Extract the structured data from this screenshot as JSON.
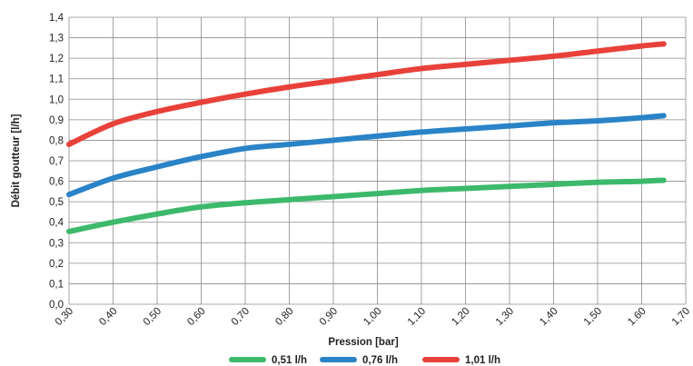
{
  "chart_data": {
    "type": "line",
    "xlabel": "Pression [bar]",
    "ylabel": "Débit goutteur [l/h]",
    "xlim": [
      0.3,
      1.7
    ],
    "ylim": [
      0.0,
      1.4
    ],
    "grid": true,
    "legend_position": "bottom",
    "x_ticks": [
      "0,30",
      "0,40",
      "0,50",
      "0,60",
      "0,70",
      "0,80",
      "0,90",
      "1,00",
      "1,10",
      "1,20",
      "1,30",
      "1,40",
      "1,50",
      "1.60",
      "1,70"
    ],
    "y_ticks": [
      "0,0",
      "0,1",
      "0,2",
      "0,3",
      "0,4",
      "0,5",
      "0,6",
      "0,7",
      "0,8",
      "0,9",
      "1,0",
      "1,1",
      "1,2",
      "1,3",
      "1,4"
    ],
    "series": [
      {
        "name": "0,51 l/h",
        "color": "#3cb96b",
        "x": [
          0.3,
          0.4,
          0.5,
          0.6,
          0.7,
          0.8,
          0.9,
          1.0,
          1.1,
          1.2,
          1.3,
          1.4,
          1.5,
          1.6,
          1.65
        ],
        "y": [
          0.355,
          0.4,
          0.44,
          0.475,
          0.495,
          0.51,
          0.525,
          0.54,
          0.555,
          0.565,
          0.575,
          0.585,
          0.595,
          0.6,
          0.605
        ]
      },
      {
        "name": "0,76 l/h",
        "color": "#2a83c7",
        "x": [
          0.3,
          0.4,
          0.5,
          0.6,
          0.7,
          0.8,
          0.9,
          1.0,
          1.1,
          1.2,
          1.3,
          1.4,
          1.5,
          1.6,
          1.65
        ],
        "y": [
          0.535,
          0.615,
          0.67,
          0.72,
          0.76,
          0.78,
          0.8,
          0.82,
          0.84,
          0.855,
          0.87,
          0.885,
          0.895,
          0.91,
          0.92
        ]
      },
      {
        "name": "1,01 l/h",
        "color": "#e8413a",
        "x": [
          0.3,
          0.4,
          0.5,
          0.6,
          0.7,
          0.8,
          0.9,
          1.0,
          1.1,
          1.2,
          1.3,
          1.4,
          1.5,
          1.6,
          1.65
        ],
        "y": [
          0.78,
          0.88,
          0.94,
          0.985,
          1.025,
          1.06,
          1.09,
          1.12,
          1.15,
          1.17,
          1.19,
          1.21,
          1.235,
          1.26,
          1.27
        ]
      }
    ]
  }
}
